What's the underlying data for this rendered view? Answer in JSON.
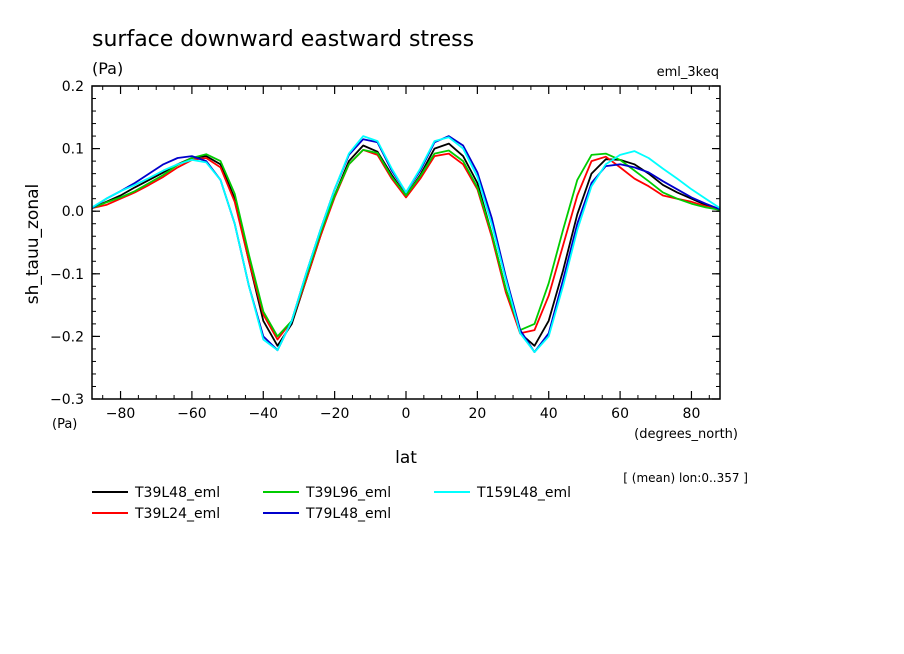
{
  "chart_data": {
    "type": "line",
    "title": "surface downward eastward stress",
    "units": "(Pa)",
    "experiment": "eml_3keq",
    "ylabel": "sh_tauu_zonal",
    "xlabel": "lat",
    "xunits": "(degrees_north)",
    "yunits_bottom": "(Pa)",
    "subtitle": "[ (mean) lon:0..357 ]",
    "xlim": [
      -88,
      88
    ],
    "ylim": [
      -0.3,
      0.2
    ],
    "xticks": [
      -80,
      -60,
      -40,
      -20,
      0,
      20,
      40,
      60,
      80
    ],
    "xtick_labels": [
      "−80",
      "−60",
      "−40",
      "−20",
      "0",
      "20",
      "40",
      "60",
      "80"
    ],
    "yticks": [
      -0.3,
      -0.2,
      -0.1,
      0.0,
      0.1,
      0.2
    ],
    "ytick_labels": [
      "−0.3",
      "−0.2",
      "−0.1",
      "0.0",
      "0.1",
      "0.2"
    ],
    "x": [
      -88,
      -84,
      -80,
      -76,
      -72,
      -68,
      -64,
      -60,
      -56,
      -52,
      -48,
      -44,
      -40,
      -36,
      -32,
      -28,
      -24,
      -20,
      -16,
      -12,
      -8,
      -4,
      0,
      4,
      8,
      12,
      16,
      20,
      24,
      28,
      32,
      36,
      40,
      44,
      48,
      52,
      56,
      60,
      64,
      68,
      72,
      76,
      80,
      84,
      88
    ],
    "series": [
      {
        "name": "T39L48_eml",
        "color": "#000000",
        "values": [
          0.005,
          0.015,
          0.025,
          0.038,
          0.05,
          0.062,
          0.075,
          0.085,
          0.088,
          0.075,
          0.02,
          -0.08,
          -0.175,
          -0.215,
          -0.18,
          -0.11,
          -0.04,
          0.025,
          0.08,
          0.105,
          0.095,
          0.058,
          0.025,
          0.058,
          0.1,
          0.108,
          0.088,
          0.045,
          -0.035,
          -0.125,
          -0.195,
          -0.215,
          -0.175,
          -0.095,
          -0.005,
          0.06,
          0.083,
          0.082,
          0.075,
          0.06,
          0.042,
          0.03,
          0.02,
          0.01,
          0.003
        ]
      },
      {
        "name": "T39L24_eml",
        "color": "#ff0000",
        "values": [
          0.005,
          0.01,
          0.02,
          0.03,
          0.042,
          0.055,
          0.07,
          0.082,
          0.085,
          0.07,
          0.015,
          -0.08,
          -0.165,
          -0.205,
          -0.175,
          -0.11,
          -0.04,
          0.022,
          0.075,
          0.098,
          0.09,
          0.052,
          0.022,
          0.052,
          0.088,
          0.092,
          0.075,
          0.035,
          -0.04,
          -0.13,
          -0.195,
          -0.19,
          -0.135,
          -0.055,
          0.025,
          0.08,
          0.087,
          0.07,
          0.052,
          0.04,
          0.025,
          0.02,
          0.015,
          0.008,
          0.002
        ]
      },
      {
        "name": "T39L96_eml",
        "color": "#00cc00",
        "values": [
          0.005,
          0.014,
          0.022,
          0.032,
          0.045,
          0.058,
          0.074,
          0.085,
          0.091,
          0.08,
          0.028,
          -0.07,
          -0.16,
          -0.2,
          -0.175,
          -0.105,
          -0.035,
          0.025,
          0.075,
          0.098,
          0.093,
          0.055,
          0.025,
          0.056,
          0.092,
          0.097,
          0.08,
          0.038,
          -0.035,
          -0.125,
          -0.19,
          -0.18,
          -0.115,
          -0.03,
          0.05,
          0.09,
          0.092,
          0.082,
          0.065,
          0.048,
          0.03,
          0.02,
          0.012,
          0.006,
          0.002
        ]
      },
      {
        "name": "T79L48_eml",
        "color": "#0000cc",
        "values": [
          0.005,
          0.02,
          0.032,
          0.045,
          0.06,
          0.075,
          0.085,
          0.088,
          0.08,
          0.05,
          -0.02,
          -0.12,
          -0.2,
          -0.222,
          -0.175,
          -0.1,
          -0.03,
          0.035,
          0.09,
          0.115,
          0.11,
          0.065,
          0.03,
          0.065,
          0.11,
          0.12,
          0.105,
          0.062,
          -0.01,
          -0.105,
          -0.19,
          -0.225,
          -0.195,
          -0.11,
          -0.02,
          0.045,
          0.072,
          0.075,
          0.07,
          0.062,
          0.048,
          0.035,
          0.022,
          0.012,
          0.003
        ]
      },
      {
        "name": "T159L48_eml",
        "color": "#00ffff",
        "values": [
          0.006,
          0.02,
          0.032,
          0.042,
          0.053,
          0.065,
          0.075,
          0.082,
          0.078,
          0.05,
          -0.02,
          -0.12,
          -0.205,
          -0.222,
          -0.175,
          -0.1,
          -0.03,
          0.035,
          0.092,
          0.12,
          0.112,
          0.068,
          0.03,
          0.068,
          0.112,
          0.118,
          0.1,
          0.055,
          -0.02,
          -0.11,
          -0.195,
          -0.225,
          -0.2,
          -0.12,
          -0.03,
          0.04,
          0.075,
          0.09,
          0.096,
          0.085,
          0.068,
          0.052,
          0.035,
          0.02,
          0.005
        ]
      }
    ],
    "legend": {
      "placement": "bottom-left"
    }
  }
}
